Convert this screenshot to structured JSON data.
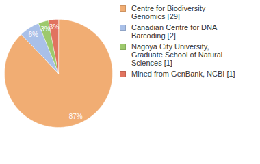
{
  "chart_data": {
    "type": "pie",
    "categories": [
      "Centre for Biodiversity Genomics [29]",
      "Canadian Centre for DNA Barcoding [2]",
      "Nagoya City University, Graduate School of Natural Sciences [1]",
      "Mined from GenBank, NCBI [1]"
    ],
    "values": [
      87,
      6,
      3,
      3
    ],
    "value_labels": [
      "87%",
      "6%",
      "3%",
      "3%"
    ],
    "colors": [
      "#f1ad73",
      "#a9c0e8",
      "#9dc96c",
      "#e1735f"
    ],
    "data_labels": true,
    "legend": "right"
  }
}
